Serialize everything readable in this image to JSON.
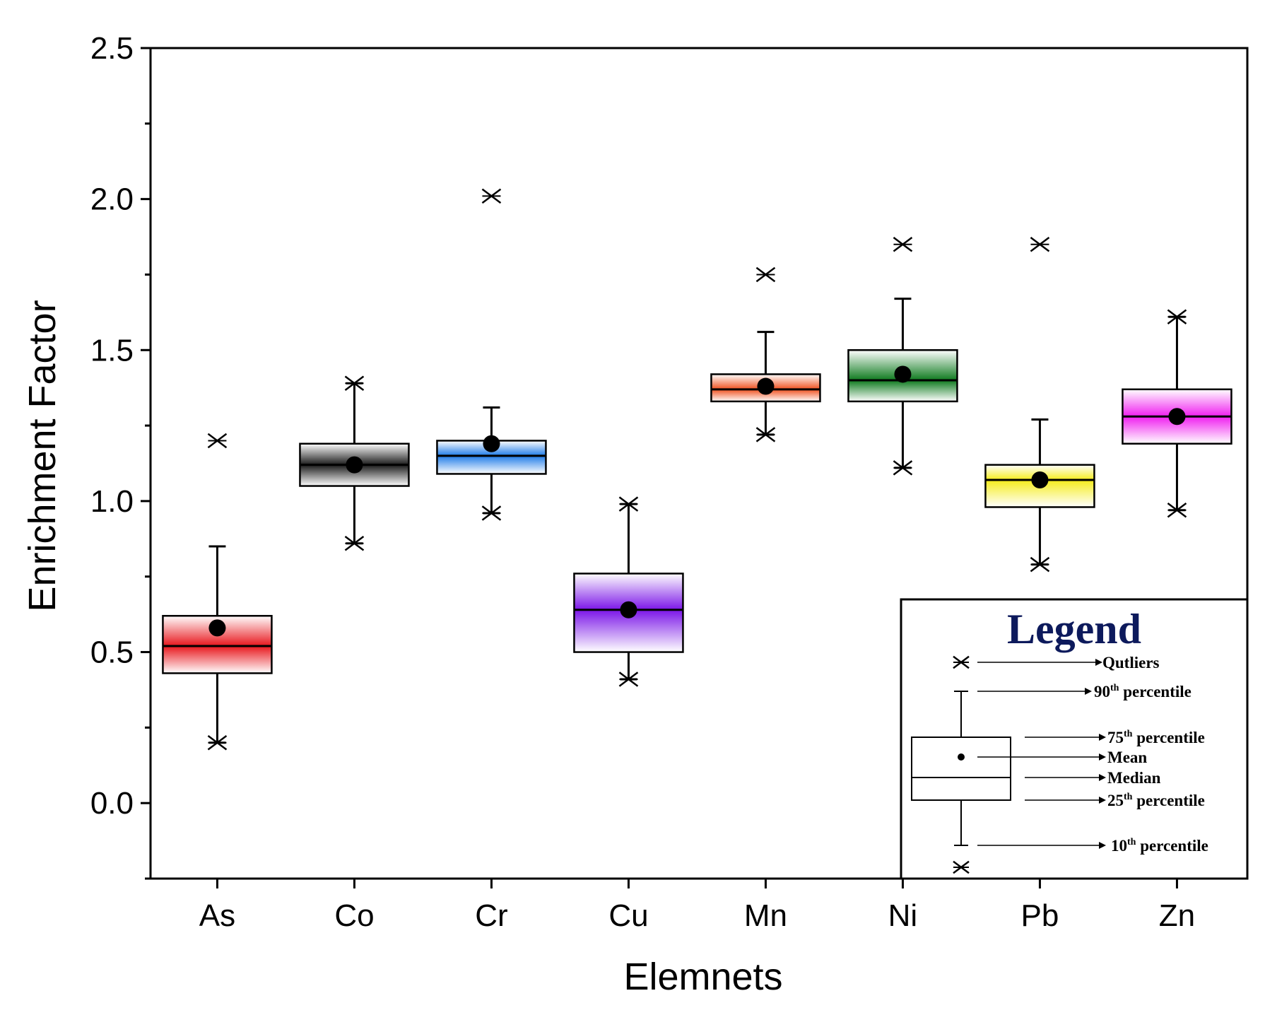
{
  "chart_data": {
    "type": "box",
    "title": "",
    "xlabel": "Elemnets",
    "ylabel": "Enrichment Factor",
    "ylim": [
      -0.25,
      2.5
    ],
    "yticks": [
      "0.0",
      "0.5",
      "1.0",
      "1.5",
      "2.0",
      "2.5"
    ],
    "categories": [
      "As",
      "Co",
      "Cr",
      "Cu",
      "Mn",
      "Ni",
      "Pb",
      "Zn"
    ],
    "boxes": [
      {
        "name": "As",
        "color": "#e8161c",
        "q1": 0.43,
        "median": 0.52,
        "q3": 0.62,
        "mean": 0.58,
        "whisker_low": 0.2,
        "whisker_high": 0.85,
        "min": 0.2,
        "max": 1.2,
        "outliers": [
          1.2
        ]
      },
      {
        "name": "Co",
        "color": "#1a1a1a",
        "q1": 1.05,
        "median": 1.12,
        "q3": 1.19,
        "mean": 1.12,
        "whisker_low": 0.86,
        "whisker_high": 1.39,
        "min": 0.86,
        "max": 1.39,
        "outliers": []
      },
      {
        "name": "Cr",
        "color": "#1e7be8",
        "q1": 1.09,
        "median": 1.15,
        "q3": 1.2,
        "mean": 1.19,
        "whisker_low": 0.96,
        "whisker_high": 1.31,
        "min": 0.96,
        "max": 2.01,
        "outliers": [
          2.01
        ]
      },
      {
        "name": "Cu",
        "color": "#7b16e8",
        "q1": 0.5,
        "median": 0.64,
        "q3": 0.76,
        "mean": 0.64,
        "whisker_low": 0.41,
        "whisker_high": 0.99,
        "min": 0.41,
        "max": 0.99,
        "outliers": []
      },
      {
        "name": "Mn",
        "color": "#f0501e",
        "q1": 1.33,
        "median": 1.37,
        "q3": 1.42,
        "mean": 1.38,
        "whisker_low": 1.22,
        "whisker_high": 1.56,
        "min": 1.22,
        "max": 1.75,
        "outliers": [
          1.75
        ]
      },
      {
        "name": "Ni",
        "color": "#0e7a1e",
        "q1": 1.33,
        "median": 1.4,
        "q3": 1.5,
        "mean": 1.42,
        "whisker_low": 1.11,
        "whisker_high": 1.67,
        "min": 1.11,
        "max": 1.85,
        "outliers": [
          1.85
        ]
      },
      {
        "name": "Pb",
        "color": "#f5ec1a",
        "q1": 0.98,
        "median": 1.07,
        "q3": 1.12,
        "mean": 1.07,
        "whisker_low": 0.79,
        "whisker_high": 1.27,
        "min": 0.79,
        "max": 1.85,
        "outliers": [
          1.85
        ]
      },
      {
        "name": "Zn",
        "color": "#f01ef0",
        "q1": 1.19,
        "median": 1.28,
        "q3": 1.37,
        "mean": 1.28,
        "whisker_low": 0.97,
        "whisker_high": 1.61,
        "min": 0.97,
        "max": 1.61,
        "outliers": []
      }
    ],
    "legend": {
      "title": "Legend",
      "placement": "bottom-right",
      "items": [
        {
          "key": "outliers",
          "label": "Qutliers"
        },
        {
          "key": "p90",
          "label": "90th percentile"
        },
        {
          "key": "p75",
          "label": "75th percentile"
        },
        {
          "key": "mean",
          "label": "Mean"
        },
        {
          "key": "median",
          "label": "Median"
        },
        {
          "key": "p25",
          "label": "25th percentile"
        },
        {
          "key": "p10",
          "label": "10th percentile"
        }
      ]
    }
  }
}
